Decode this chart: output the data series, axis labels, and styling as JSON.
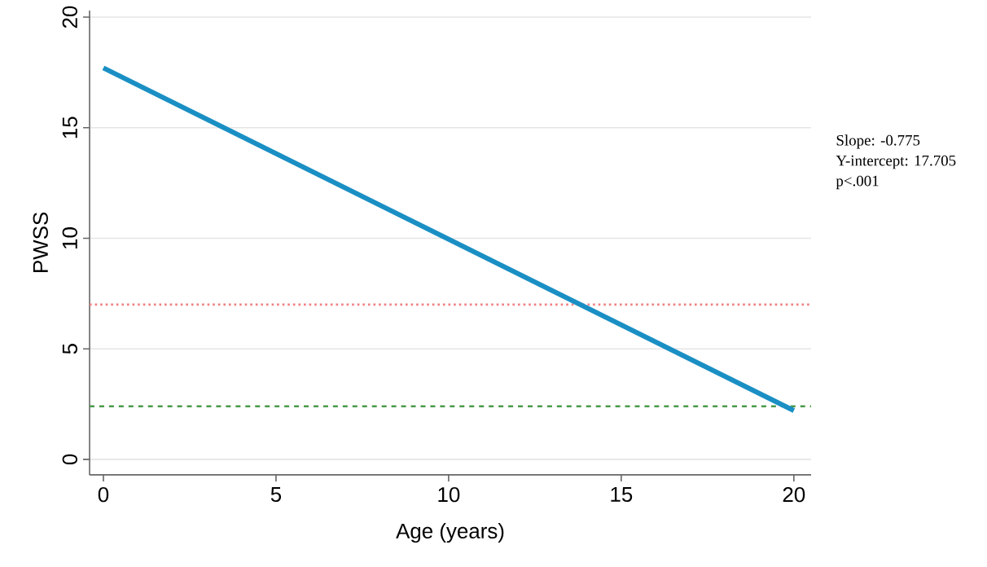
{
  "chart_data": {
    "type": "line",
    "xlabel": "Age (years)",
    "ylabel": "PWSS",
    "x": [
      0,
      20
    ],
    "series": [
      {
        "color": "#1a8fc4",
        "values": [
          17.705,
          2.205
        ]
      }
    ],
    "xlim": [
      -0.4,
      20.5
    ],
    "ylim": [
      -0.7,
      20.3
    ],
    "xticks": [
      0,
      5,
      10,
      15,
      20
    ],
    "yticks": [
      0,
      5,
      10,
      15,
      20
    ],
    "grid": "y",
    "marker": "none",
    "line_style": "solid",
    "ref_lines": [
      {
        "axis": "y",
        "value": 7,
        "color": "#f08080",
        "line_style": "dotted"
      },
      {
        "axis": "y",
        "value": 2.4,
        "color": "#4a9a4a",
        "line_style": "dashed"
      }
    ],
    "annotations": [
      "Slope: -0.775",
      "Y-intercept: 17.705",
      "p<.001"
    ]
  }
}
